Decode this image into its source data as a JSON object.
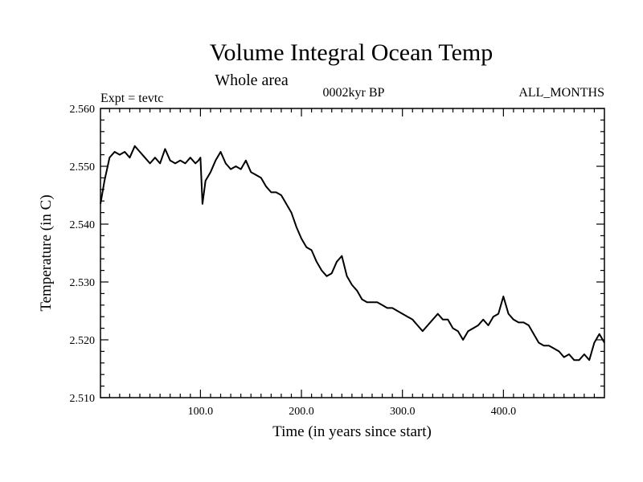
{
  "chart_data": {
    "type": "line",
    "title": "Volume Integral Ocean Temp",
    "subtitle": "Whole area",
    "left_label": "Expt = tevtc",
    "center_label": "0002kyr BP",
    "right_label": "ALL_MONTHS",
    "xlabel": "Time (in years since start)",
    "ylabel": "Temperature (in C)",
    "xlim": [
      1,
      500
    ],
    "ylim": [
      2.51,
      2.56
    ],
    "xticks": [
      100,
      200,
      300,
      400
    ],
    "xtick_labels": [
      "100.0",
      "200.0",
      "300.0",
      "400.0"
    ],
    "yticks": [
      2.51,
      2.52,
      2.53,
      2.54,
      2.55,
      2.56
    ],
    "ytick_labels": [
      "2.510",
      "2.520",
      "2.530",
      "2.540",
      "2.550",
      "2.560"
    ],
    "grid": false,
    "series": [
      {
        "x": [
          1,
          5,
          10,
          15,
          20,
          25,
          30,
          35,
          40,
          45,
          50,
          55,
          60,
          65,
          70,
          75,
          80,
          85,
          90,
          95,
          98,
          100,
          102,
          105,
          110,
          115,
          120,
          125,
          130,
          135,
          140,
          145,
          150,
          155,
          160,
          165,
          170,
          175,
          180,
          185,
          190,
          195,
          200,
          205,
          210,
          215,
          220,
          225,
          230,
          235,
          240,
          245,
          250,
          255,
          260,
          265,
          270,
          275,
          280,
          285,
          290,
          295,
          300,
          305,
          310,
          315,
          320,
          325,
          330,
          335,
          340,
          345,
          350,
          355,
          360,
          365,
          370,
          375,
          380,
          385,
          390,
          395,
          400,
          405,
          410,
          415,
          420,
          425,
          430,
          435,
          440,
          445,
          450,
          455,
          460,
          465,
          470,
          475,
          480,
          485,
          490,
          495,
          500
        ],
        "y": [
          2.5435,
          2.5475,
          2.5515,
          2.5525,
          2.552,
          2.5525,
          2.5515,
          2.5535,
          2.5525,
          2.5515,
          2.5505,
          2.5515,
          2.5505,
          2.553,
          2.551,
          2.5505,
          2.551,
          2.5505,
          2.5515,
          2.5505,
          2.551,
          2.5515,
          2.5435,
          2.5475,
          2.549,
          2.551,
          2.5525,
          2.5505,
          2.5495,
          2.55,
          2.5495,
          2.551,
          2.549,
          2.5485,
          2.548,
          2.5465,
          2.5455,
          2.5455,
          2.545,
          2.5435,
          2.542,
          2.5395,
          2.5375,
          2.536,
          2.5355,
          2.5335,
          2.532,
          2.531,
          2.5315,
          2.5335,
          2.5345,
          2.531,
          2.5295,
          2.5285,
          2.527,
          2.5265,
          2.5265,
          2.5265,
          2.526,
          2.5255,
          2.5255,
          2.525,
          2.5245,
          2.524,
          2.5235,
          2.5225,
          2.5215,
          2.5225,
          2.5235,
          2.5245,
          2.5235,
          2.5235,
          2.522,
          2.5215,
          2.52,
          2.5215,
          2.522,
          2.5225,
          2.5235,
          2.5225,
          2.524,
          2.5245,
          2.5275,
          2.5245,
          2.5235,
          2.523,
          2.523,
          2.5225,
          2.521,
          2.5195,
          2.519,
          2.519,
          2.5185,
          2.518,
          2.517,
          2.5175,
          2.5165,
          2.5165,
          2.5175,
          2.5165,
          2.5195,
          2.521,
          2.5195
        ]
      }
    ]
  }
}
